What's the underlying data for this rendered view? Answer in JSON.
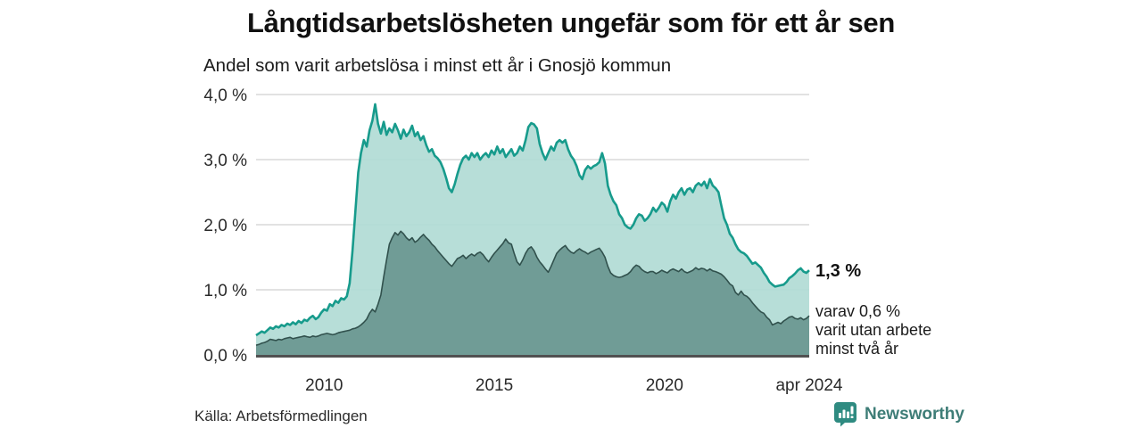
{
  "header": {
    "title": "Långtidsarbetslösheten ungefär som för ett år sen",
    "subtitle": "Andel som varit arbetslösa i minst ett år i Gnosjö kommun"
  },
  "annotation": {
    "value_label": "1,3 %",
    "sub_line1": "varav 0,6 %",
    "sub_line2": "varit utan arbete",
    "sub_line3": "minst två år"
  },
  "footer": {
    "source": "Källa: Arbetsförmedlingen",
    "brand": "Newsworthy"
  },
  "colors": {
    "line1": "#179b8c",
    "fill1": "#afdad4",
    "line2": "#31514d",
    "fill2": "#68958f",
    "grid": "#d9d9d9",
    "axis": "#515151",
    "brand_icon": "#2f8b81",
    "brand_text": "#3e7d77"
  },
  "chart_data": {
    "type": "area",
    "title": "Långtidsarbetslösheten ungefär som för ett år sen",
    "subtitle": "Andel som varit arbetslösa i minst ett år i Gnosjö kommun",
    "unit": "%",
    "x_start": "2008-01",
    "x_end": "2024-04",
    "points_per_year": 12,
    "ylim": [
      0,
      4
    ],
    "grid": true,
    "legend": "none",
    "y_ticks": [
      {
        "label": "0,0 %",
        "value": 0
      },
      {
        "label": "1,0 %",
        "value": 1
      },
      {
        "label": "2,0 %",
        "value": 2
      },
      {
        "label": "3,0 %",
        "value": 3
      },
      {
        "label": "4,0 %",
        "value": 4
      }
    ],
    "x_ticks": [
      {
        "label": "2010",
        "year": 2010
      },
      {
        "label": "2015",
        "year": 2015
      },
      {
        "label": "2020",
        "year": 2020
      },
      {
        "label": "apr 2024",
        "year": 2024.25
      }
    ],
    "series": [
      {
        "name": "Arbetslösa minst ett år",
        "latest_value": 1.3,
        "values": [
          0.3,
          0.33,
          0.36,
          0.34,
          0.38,
          0.42,
          0.4,
          0.44,
          0.42,
          0.46,
          0.44,
          0.48,
          0.46,
          0.5,
          0.47,
          0.52,
          0.49,
          0.54,
          0.52,
          0.57,
          0.6,
          0.55,
          0.58,
          0.65,
          0.7,
          0.68,
          0.78,
          0.75,
          0.83,
          0.8,
          0.87,
          0.85,
          0.9,
          1.1,
          1.6,
          2.2,
          2.8,
          3.1,
          3.3,
          3.2,
          3.45,
          3.6,
          3.85,
          3.55,
          3.4,
          3.58,
          3.38,
          3.48,
          3.42,
          3.55,
          3.45,
          3.32,
          3.46,
          3.36,
          3.42,
          3.52,
          3.36,
          3.42,
          3.3,
          3.36,
          3.22,
          3.12,
          3.16,
          3.06,
          3.02,
          2.96,
          2.86,
          2.72,
          2.56,
          2.5,
          2.62,
          2.78,
          2.92,
          3.02,
          3.06,
          3.0,
          3.1,
          3.04,
          3.1,
          3.0,
          3.06,
          3.1,
          3.04,
          3.14,
          3.08,
          3.2,
          3.1,
          3.16,
          3.04,
          3.1,
          3.16,
          3.06,
          3.1,
          3.2,
          3.14,
          3.3,
          3.5,
          3.56,
          3.54,
          3.48,
          3.24,
          3.1,
          3.0,
          3.1,
          3.2,
          3.14,
          3.26,
          3.3,
          3.26,
          3.3,
          3.16,
          3.06,
          3.0,
          2.9,
          2.76,
          2.7,
          2.84,
          2.9,
          2.86,
          2.9,
          2.92,
          2.96,
          3.1,
          2.94,
          2.6,
          2.46,
          2.36,
          2.3,
          2.16,
          2.1,
          2.0,
          1.96,
          1.94,
          2.0,
          2.1,
          2.16,
          2.14,
          2.06,
          2.1,
          2.16,
          2.26,
          2.2,
          2.26,
          2.34,
          2.3,
          2.2,
          2.36,
          2.46,
          2.4,
          2.5,
          2.56,
          2.46,
          2.54,
          2.56,
          2.5,
          2.6,
          2.64,
          2.6,
          2.66,
          2.56,
          2.7,
          2.6,
          2.56,
          2.5,
          2.3,
          2.1,
          2.0,
          1.86,
          1.8,
          1.7,
          1.62,
          1.58,
          1.56,
          1.52,
          1.46,
          1.4,
          1.42,
          1.38,
          1.34,
          1.26,
          1.2,
          1.12,
          1.08,
          1.05,
          1.06,
          1.07,
          1.08,
          1.12,
          1.18,
          1.21,
          1.25,
          1.3,
          1.33,
          1.28,
          1.26,
          1.3
        ]
      },
      {
        "name": "Arbetslösa minst två år",
        "latest_value": 0.6,
        "values": [
          0.15,
          0.16,
          0.18,
          0.19,
          0.21,
          0.24,
          0.23,
          0.22,
          0.24,
          0.23,
          0.25,
          0.26,
          0.27,
          0.25,
          0.26,
          0.27,
          0.28,
          0.29,
          0.28,
          0.27,
          0.29,
          0.28,
          0.29,
          0.31,
          0.32,
          0.33,
          0.32,
          0.31,
          0.32,
          0.34,
          0.35,
          0.36,
          0.37,
          0.38,
          0.4,
          0.41,
          0.43,
          0.46,
          0.5,
          0.55,
          0.64,
          0.7,
          0.66,
          0.78,
          0.92,
          1.2,
          1.46,
          1.7,
          1.8,
          1.88,
          1.84,
          1.9,
          1.86,
          1.8,
          1.76,
          1.8,
          1.73,
          1.76,
          1.81,
          1.85,
          1.8,
          1.76,
          1.7,
          1.66,
          1.6,
          1.55,
          1.5,
          1.45,
          1.4,
          1.36,
          1.42,
          1.48,
          1.5,
          1.53,
          1.48,
          1.52,
          1.55,
          1.52,
          1.56,
          1.58,
          1.54,
          1.48,
          1.43,
          1.5,
          1.56,
          1.61,
          1.66,
          1.71,
          1.78,
          1.72,
          1.7,
          1.56,
          1.43,
          1.38,
          1.46,
          1.56,
          1.63,
          1.66,
          1.6,
          1.5,
          1.43,
          1.38,
          1.32,
          1.27,
          1.36,
          1.46,
          1.56,
          1.61,
          1.65,
          1.68,
          1.62,
          1.58,
          1.56,
          1.6,
          1.63,
          1.6,
          1.58,
          1.55,
          1.58,
          1.6,
          1.62,
          1.64,
          1.58,
          1.5,
          1.36,
          1.26,
          1.22,
          1.2,
          1.19,
          1.2,
          1.22,
          1.24,
          1.28,
          1.34,
          1.38,
          1.36,
          1.31,
          1.28,
          1.26,
          1.28,
          1.28,
          1.25,
          1.27,
          1.3,
          1.28,
          1.26,
          1.3,
          1.32,
          1.3,
          1.28,
          1.32,
          1.28,
          1.26,
          1.28,
          1.3,
          1.34,
          1.31,
          1.33,
          1.32,
          1.29,
          1.32,
          1.29,
          1.28,
          1.26,
          1.24,
          1.2,
          1.15,
          1.09,
          1.06,
          0.96,
          0.92,
          0.98,
          0.92,
          0.9,
          0.86,
          0.8,
          0.75,
          0.7,
          0.66,
          0.64,
          0.58,
          0.54,
          0.46,
          0.48,
          0.5,
          0.48,
          0.52,
          0.55,
          0.58,
          0.59,
          0.56,
          0.55,
          0.57,
          0.54,
          0.56,
          0.6
        ]
      }
    ]
  }
}
